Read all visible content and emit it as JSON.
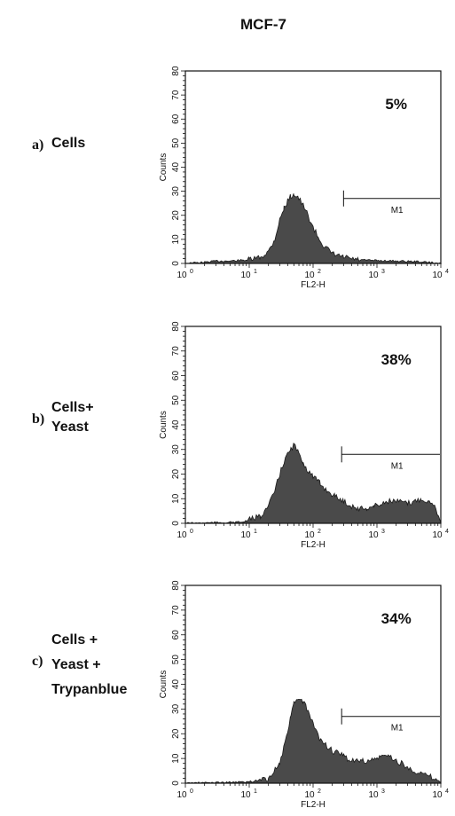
{
  "title": "MCF-7",
  "chart_data": [
    {
      "type": "area",
      "panel_letter": "a)",
      "label_lines": [
        "Cells"
      ],
      "percent_label": "5%",
      "marker_label": "M1",
      "marker_range": [
        300,
        10000
      ],
      "marker_level": 27,
      "xlabel": "FL2-H",
      "ylabel": "Counts",
      "xscale": "log",
      "xlim": [
        1,
        10000
      ],
      "ylim": [
        0,
        80
      ],
      "x_ticks": [
        {
          "base": "10",
          "exp": "0"
        },
        {
          "base": "10",
          "exp": "1"
        },
        {
          "base": "10",
          "exp": "2"
        },
        {
          "base": "10",
          "exp": "3"
        },
        {
          "base": "10",
          "exp": "4"
        }
      ],
      "y_ticks": [
        "0",
        "10",
        "20",
        "30",
        "40",
        "50",
        "60",
        "70",
        "80"
      ],
      "curve": [
        [
          1.0,
          0
        ],
        [
          2.0,
          0.5
        ],
        [
          3.0,
          1
        ],
        [
          5.0,
          1
        ],
        [
          10.0,
          1.5
        ],
        [
          15.0,
          2.5
        ],
        [
          20.0,
          5
        ],
        [
          25.0,
          10
        ],
        [
          30.0,
          18
        ],
        [
          35.0,
          23
        ],
        [
          40.0,
          26
        ],
        [
          45.0,
          28
        ],
        [
          50.0,
          29
        ],
        [
          55.0,
          28
        ],
        [
          60.0,
          27
        ],
        [
          70.0,
          24
        ],
        [
          80.0,
          21
        ],
        [
          100.0,
          15
        ],
        [
          120.0,
          11
        ],
        [
          150.0,
          7
        ],
        [
          200.0,
          4
        ],
        [
          300.0,
          2.5
        ],
        [
          500.0,
          1.5
        ],
        [
          1000.0,
          1.2
        ],
        [
          2000.0,
          1
        ],
        [
          4000.0,
          0.8
        ],
        [
          6000.0,
          0.5
        ],
        [
          10000.0,
          0
        ]
      ]
    },
    {
      "type": "area",
      "panel_letter": "b)",
      "label_lines": [
        "Cells+",
        "Yeast"
      ],
      "percent_label": "38%",
      "marker_label": "M1",
      "marker_range": [
        280,
        10000
      ],
      "marker_level": 28,
      "xlabel": "FL2-H",
      "ylabel": "Counts",
      "xscale": "log",
      "xlim": [
        1,
        10000
      ],
      "ylim": [
        0,
        80
      ],
      "x_ticks": [
        {
          "base": "10",
          "exp": "0"
        },
        {
          "base": "10",
          "exp": "1"
        },
        {
          "base": "10",
          "exp": "2"
        },
        {
          "base": "10",
          "exp": "3"
        },
        {
          "base": "10",
          "exp": "4"
        }
      ],
      "y_ticks": [
        "0",
        "10",
        "20",
        "30",
        "40",
        "50",
        "60",
        "70",
        "80"
      ],
      "curve": [
        [
          1.0,
          0
        ],
        [
          8.0,
          0.5
        ],
        [
          15.0,
          3
        ],
        [
          20.0,
          7
        ],
        [
          25.0,
          13
        ],
        [
          30.0,
          20
        ],
        [
          35.0,
          25
        ],
        [
          40.0,
          28
        ],
        [
          45.0,
          30
        ],
        [
          50.0,
          32
        ],
        [
          55.0,
          30
        ],
        [
          60.0,
          28
        ],
        [
          70.0,
          25
        ],
        [
          80.0,
          22
        ],
        [
          100.0,
          19
        ],
        [
          130.0,
          16
        ],
        [
          170.0,
          13
        ],
        [
          220.0,
          11
        ],
        [
          300.0,
          9
        ],
        [
          400.0,
          7
        ],
        [
          500.0,
          6
        ],
        [
          700.0,
          6
        ],
        [
          900.0,
          7
        ],
        [
          1200.0,
          8
        ],
        [
          1500.0,
          9
        ],
        [
          2000.0,
          9
        ],
        [
          3000.0,
          8
        ],
        [
          4000.0,
          9
        ],
        [
          5000.0,
          10
        ],
        [
          6000.0,
          9
        ],
        [
          8000.0,
          8
        ],
        [
          10000.0,
          0
        ]
      ]
    },
    {
      "type": "area",
      "panel_letter": "c)",
      "label_lines": [
        "Cells +",
        "Yeast +",
        "Trypanblue"
      ],
      "percent_label": "34%",
      "marker_label": "M1",
      "marker_range": [
        280,
        10000
      ],
      "marker_level": 27,
      "xlabel": "FL2-H",
      "ylabel": "Counts",
      "xscale": "log",
      "xlim": [
        1,
        10000
      ],
      "ylim": [
        0,
        80
      ],
      "x_ticks": [
        {
          "base": "10",
          "exp": "0"
        },
        {
          "base": "10",
          "exp": "1"
        },
        {
          "base": "10",
          "exp": "2"
        },
        {
          "base": "10",
          "exp": "3"
        },
        {
          "base": "10",
          "exp": "4"
        }
      ],
      "y_ticks": [
        "0",
        "10",
        "20",
        "30",
        "40",
        "50",
        "60",
        "70",
        "80"
      ],
      "curve": [
        [
          1.0,
          0
        ],
        [
          10.0,
          0.5
        ],
        [
          20.0,
          2
        ],
        [
          30.0,
          8
        ],
        [
          40.0,
          20
        ],
        [
          45.0,
          28
        ],
        [
          50.0,
          32
        ],
        [
          60.0,
          34
        ],
        [
          70.0,
          33
        ],
        [
          80.0,
          30
        ],
        [
          100.0,
          24
        ],
        [
          120.0,
          19
        ],
        [
          150.0,
          16
        ],
        [
          200.0,
          13
        ],
        [
          300.0,
          11
        ],
        [
          400.0,
          9
        ],
        [
          600.0,
          9
        ],
        [
          800.0,
          9
        ],
        [
          1000.0,
          10
        ],
        [
          1200.0,
          11
        ],
        [
          1500.0,
          11
        ],
        [
          2000.0,
          9
        ],
        [
          2500.0,
          8
        ],
        [
          3000.0,
          6
        ],
        [
          4000.0,
          5
        ],
        [
          5000.0,
          4
        ],
        [
          6000.0,
          3
        ],
        [
          8000.0,
          2
        ],
        [
          10000.0,
          0
        ]
      ]
    }
  ]
}
